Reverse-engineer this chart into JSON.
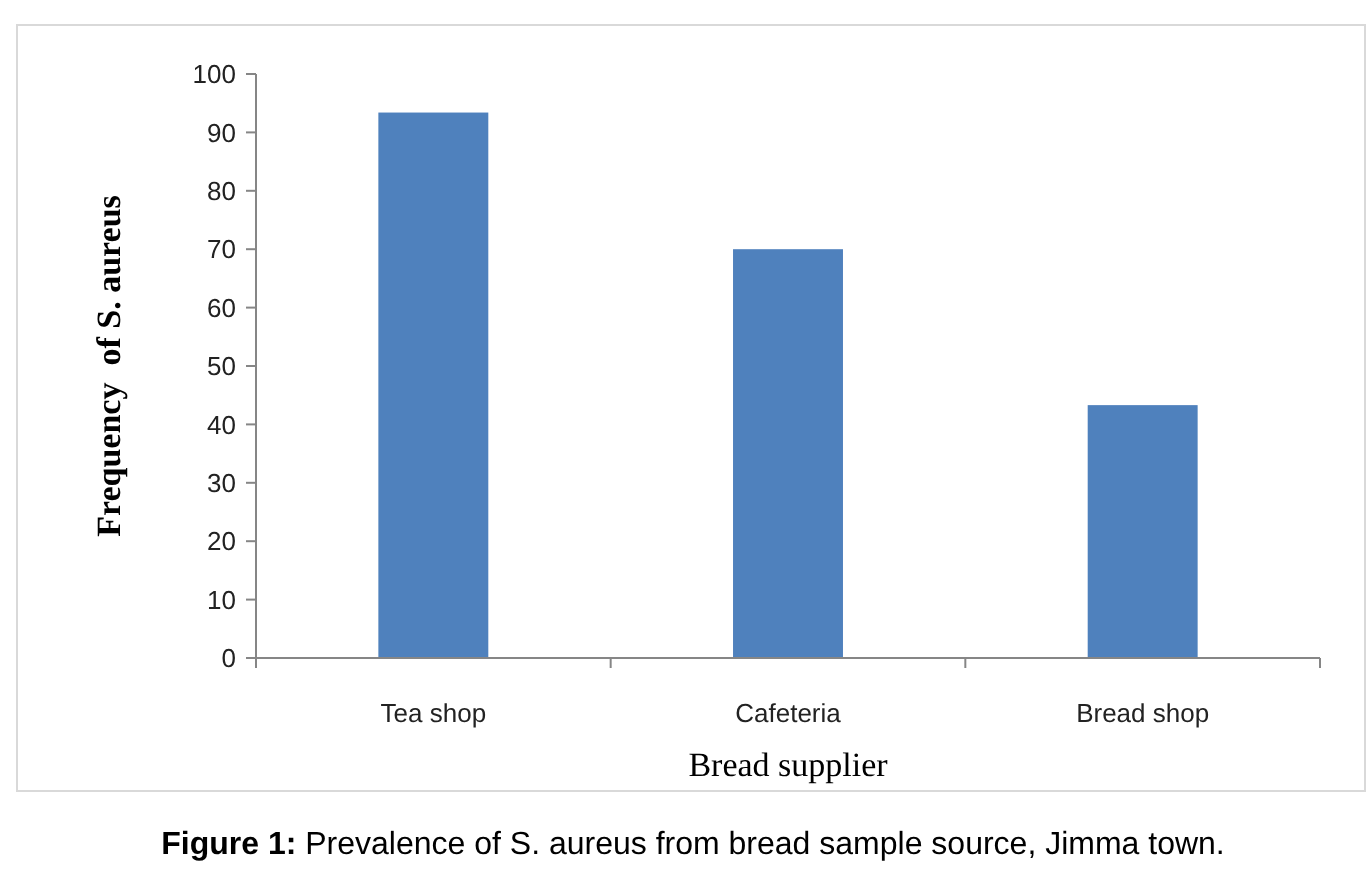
{
  "chart_data": {
    "type": "bar",
    "title": "Figure 1: Prevalence of S. aureus from bread sample source, Jimma town.",
    "xlabel": "Bread supplier",
    "ylabel": "Frequency  of S. aureus",
    "categories": [
      "Tea shop",
      "Cafeteria",
      "Bread shop"
    ],
    "values": [
      93.4,
      70,
      43.3
    ],
    "color": "#4f81bd",
    "ylim": [
      0,
      100
    ],
    "yticks": [
      0,
      10,
      20,
      30,
      40,
      50,
      60,
      70,
      80,
      90,
      100
    ],
    "grid": false
  }
}
